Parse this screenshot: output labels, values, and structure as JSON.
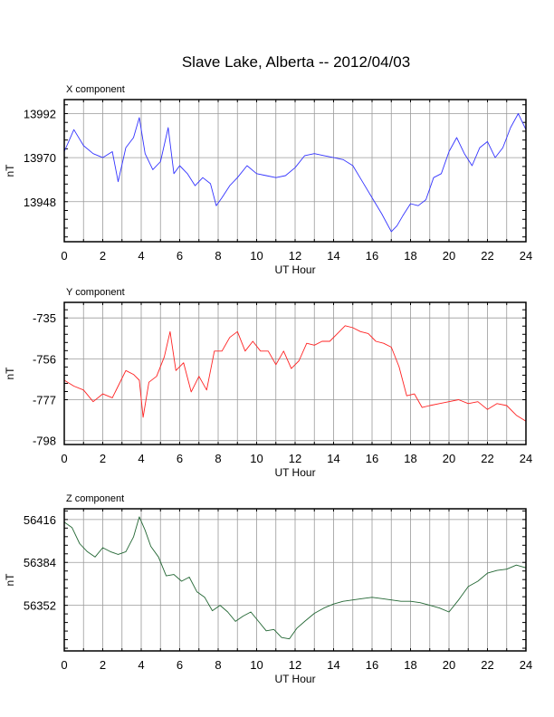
{
  "figure": {
    "title": "Slave Lake, Alberta -- 2012/04/03"
  },
  "chart_data": [
    {
      "type": "line",
      "panel_label": "X component",
      "title": "",
      "xlabel": "UT Hour",
      "ylabel": "nT",
      "xlim": [
        0,
        24
      ],
      "ylim": [
        13928,
        13999
      ],
      "x_ticks": [
        0,
        2,
        4,
        6,
        8,
        10,
        12,
        14,
        16,
        18,
        20,
        22,
        24
      ],
      "y_ticks": [
        13948,
        13970,
        13992
      ],
      "grid": true,
      "color": "#3333ff",
      "series": [
        {
          "x": [
            0,
            0.5,
            1,
            1.5,
            2,
            2.5,
            2.8,
            3.2,
            3.6,
            3.9,
            4.2,
            4.6,
            5,
            5.4,
            5.7,
            6,
            6.4,
            6.8,
            7.2,
            7.6,
            7.9,
            8.2,
            8.6,
            9,
            9.5,
            10,
            10.5,
            11,
            11.5,
            12,
            12.5,
            13,
            13.5,
            14,
            14.5,
            15,
            15.5,
            16,
            16.5,
            17,
            17.3,
            17.6,
            18,
            18.4,
            18.8,
            19.2,
            19.6,
            20,
            20.4,
            20.8,
            21.2,
            21.6,
            22,
            22.4,
            22.8,
            23.2,
            23.6,
            24
          ],
          "y": [
            13973,
            13984,
            13976,
            13972,
            13970,
            13973,
            13958,
            13975,
            13980,
            13990,
            13972,
            13964,
            13968,
            13985,
            13962,
            13966,
            13962,
            13956,
            13960,
            13957,
            13946,
            13950,
            13956,
            13960,
            13966,
            13962,
            13961,
            13960,
            13961,
            13965,
            13971,
            13972,
            13971,
            13970,
            13969,
            13966,
            13958,
            13950,
            13942,
            13933,
            13936,
            13941,
            13947,
            13946,
            13949,
            13960,
            13962,
            13973,
            13980,
            13972,
            13966,
            13975,
            13978,
            13970,
            13975,
            13985,
            13992,
            13984
          ]
        }
      ]
    },
    {
      "type": "line",
      "panel_label": "Y component",
      "title": "",
      "xlabel": "UT Hour",
      "ylabel": "nT",
      "xlim": [
        0,
        24
      ],
      "ylim": [
        -800,
        -727
      ],
      "x_ticks": [
        0,
        2,
        4,
        6,
        8,
        10,
        12,
        14,
        16,
        18,
        20,
        22,
        24
      ],
      "y_ticks": [
        -735,
        -756,
        -777,
        -798
      ],
      "grid": true,
      "color": "#ff2222",
      "series": [
        {
          "x": [
            0,
            0.5,
            1,
            1.5,
            2,
            2.5,
            2.8,
            3.2,
            3.6,
            3.9,
            4.1,
            4.4,
            4.8,
            5.2,
            5.5,
            5.8,
            6.2,
            6.6,
            7,
            7.4,
            7.8,
            8.2,
            8.6,
            9,
            9.4,
            9.8,
            10.2,
            10.6,
            11,
            11.4,
            11.8,
            12.2,
            12.6,
            13,
            13.4,
            13.8,
            14.2,
            14.6,
            15,
            15.4,
            15.8,
            16.2,
            16.6,
            17,
            17.4,
            17.8,
            18.2,
            18.6,
            19,
            19.5,
            20,
            20.5,
            21,
            21.5,
            22,
            22.5,
            23,
            23.5,
            24
          ],
          "y": [
            -767,
            -770,
            -772,
            -778,
            -774,
            -776,
            -770,
            -762,
            -764,
            -767,
            -786,
            -768,
            -765,
            -755,
            -742,
            -762,
            -758,
            -773,
            -765,
            -772,
            -752,
            -752,
            -745,
            -742,
            -752,
            -747,
            -752,
            -752,
            -759,
            -752,
            -761,
            -757,
            -748,
            -749,
            -747,
            -747,
            -743,
            -739,
            -740,
            -742,
            -743,
            -747,
            -748,
            -750,
            -760,
            -775,
            -774,
            -781,
            -780,
            -779,
            -778,
            -777,
            -779,
            -778,
            -782,
            -779,
            -780,
            -785,
            -788
          ]
        }
      ]
    },
    {
      "type": "line",
      "panel_label": "Z component",
      "title": "",
      "xlabel": "UT Hour",
      "ylabel": "nT",
      "xlim": [
        0,
        24
      ],
      "ylim": [
        56318,
        56424
      ],
      "x_ticks": [
        0,
        2,
        4,
        6,
        8,
        10,
        12,
        14,
        16,
        18,
        20,
        22,
        24
      ],
      "y_ticks": [
        56352,
        56384,
        56416
      ],
      "grid": true,
      "color": "#226633",
      "series": [
        {
          "x": [
            0,
            0.4,
            0.8,
            1.2,
            1.6,
            2,
            2.4,
            2.8,
            3.2,
            3.6,
            3.9,
            4.2,
            4.5,
            4.9,
            5.3,
            5.7,
            6.1,
            6.5,
            6.9,
            7.3,
            7.7,
            8.1,
            8.5,
            8.9,
            9.3,
            9.7,
            10.1,
            10.5,
            10.9,
            11.3,
            11.7,
            12.1,
            12.5,
            13,
            13.5,
            14,
            14.5,
            15,
            15.5,
            16,
            16.5,
            17,
            17.5,
            18,
            18.5,
            19,
            19.5,
            20,
            20.5,
            21,
            21.5,
            22,
            22.5,
            23,
            23.5,
            24
          ],
          "y": [
            56414,
            56410,
            56398,
            56392,
            56388,
            56395,
            56392,
            56390,
            56392,
            56403,
            56418,
            56408,
            56396,
            56388,
            56374,
            56375,
            56370,
            56373,
            56362,
            56358,
            56348,
            56352,
            56347,
            56340,
            56344,
            56347,
            56340,
            56333,
            56334,
            56328,
            56327,
            56335,
            56340,
            56346,
            56350,
            56353,
            56355,
            56356,
            56357,
            56358,
            56357,
            56356,
            56355,
            56355,
            56354,
            56352,
            56350,
            56347,
            56356,
            56366,
            56370,
            56376,
            56378,
            56379,
            56382,
            56380
          ]
        }
      ]
    }
  ]
}
